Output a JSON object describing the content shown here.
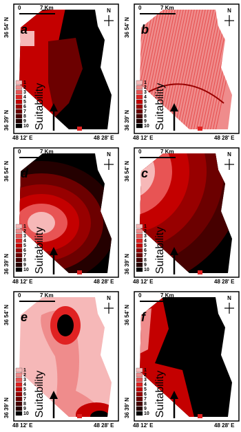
{
  "panels": [
    {
      "label": "a",
      "scale_start": "0",
      "scale_end": "7 Km",
      "north": "N",
      "lat_top": "36 54' N",
      "lat_bottom": "36 39' N",
      "lon_left": "48 12' E",
      "lon_right": "48 28' E",
      "legend": [
        "1",
        "2",
        "3",
        "4",
        "5",
        "6",
        "7",
        "8",
        "9",
        "10"
      ],
      "legend_title": "Suitability"
    },
    {
      "label": "b",
      "scale_start": "0",
      "scale_end": "7 Km",
      "north": "N",
      "lat_top": "36 54' N",
      "lat_bottom": "36 39' N",
      "lon_left": "48 12' E",
      "lon_right": "48 28' E",
      "legend": [
        "1",
        "2",
        "3",
        "4",
        "5",
        "6",
        "7",
        "8",
        "9",
        "10"
      ],
      "legend_title": "Suitability"
    },
    {
      "label": "d",
      "scale_start": "0",
      "scale_end": "7 Km",
      "north": "N",
      "lat_top": "36 54' N",
      "lat_bottom": "36 39' N",
      "lon_left": "48 12' E",
      "lon_right": "48 28' E",
      "legend": [
        "1",
        "2",
        "3",
        "4",
        "5",
        "6",
        "7",
        "8",
        "9",
        "10"
      ],
      "legend_title": "Suitability"
    },
    {
      "label": "c",
      "scale_start": "0",
      "scale_end": "7 Km",
      "north": "N",
      "lat_top": "36 54' N",
      "lat_bottom": "36 39' N",
      "lon_left": "48 12' E",
      "lon_right": "48 28' E",
      "legend": [
        "1",
        "2",
        "3",
        "4",
        "5",
        "6",
        "7",
        "8",
        "9",
        "10"
      ],
      "legend_title": "Suitability"
    },
    {
      "label": "e",
      "scale_start": "0",
      "scale_end": "7 Km",
      "north": "N",
      "lat_top": "36 54' N",
      "lat_bottom": "36 39' N",
      "lon_left": "48 12' E",
      "lon_right": "48 28' E",
      "legend": [
        "1",
        "2",
        "3",
        "4",
        "5",
        "6",
        "7",
        "8",
        "9",
        "10"
      ],
      "legend_title": "Suitability"
    },
    {
      "label": "f",
      "scale_start": "0",
      "scale_end": "7 Km",
      "north": "N",
      "lat_top": "36 54' N",
      "lat_bottom": "36 39' N",
      "lon_left": "48 12' E",
      "lon_right": "48 28' E",
      "legend": [
        "1",
        "2",
        "3",
        "4",
        "5",
        "6",
        "7",
        "8",
        "9",
        "10"
      ],
      "legend_title": "Suitability"
    }
  ],
  "legend_colors": [
    "#f6b8b8",
    "#ef8c8c",
    "#e85454",
    "#e02222",
    "#c40000",
    "#980000",
    "#6c0000",
    "#460000",
    "#240000",
    "#000000"
  ]
}
